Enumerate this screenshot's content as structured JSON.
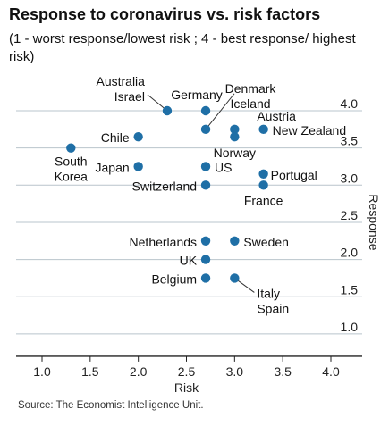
{
  "header": {
    "title": "Response to coronavirus vs. risk factors",
    "subtitle": "(1 - worst response/lowest risk ; 4 - best response/ highest risk)"
  },
  "footer": {
    "source": "Source: The Economist Intelligence Unit."
  },
  "chart_data": {
    "type": "scatter",
    "title": "Response to coronavirus vs. risk factors",
    "subtitle": "(1 - worst response/lowest risk ; 4 - best response/ highest risk)",
    "xlabel": "Risk",
    "ylabel": "Response",
    "xlim": [
      1.0,
      4.0
    ],
    "ylim": [
      0.8,
      4.1
    ],
    "xticks": [
      "1.0",
      "1.5",
      "2.0",
      "2.5",
      "3.0",
      "3.5",
      "4.0"
    ],
    "yticks": [
      "1.0",
      "1.5",
      "2.0",
      "2.5",
      "3.0",
      "3.5",
      "4.0"
    ],
    "grid": "horizontal",
    "point_color": "#1f6fa6",
    "points": [
      {
        "label": "South Korea",
        "x": 1.3,
        "y": 3.5
      },
      {
        "label": "Chile",
        "x": 2.0,
        "y": 3.65
      },
      {
        "label": "Japan",
        "x": 2.0,
        "y": 3.25
      },
      {
        "label": "Australia Israel",
        "x": 2.3,
        "y": 4.0
      },
      {
        "label": "Germany",
        "x": 2.7,
        "y": 4.0
      },
      {
        "label": "Denmark Iceland",
        "x": 2.7,
        "y": 3.75
      },
      {
        "label": "US",
        "x": 2.7,
        "y": 3.25
      },
      {
        "label": "Switzerland",
        "x": 2.7,
        "y": 3.0
      },
      {
        "label": "Netherlands",
        "x": 2.7,
        "y": 2.25
      },
      {
        "label": "UK",
        "x": 2.7,
        "y": 2.0
      },
      {
        "label": "Belgium",
        "x": 2.7,
        "y": 1.75
      },
      {
        "label": "Austria",
        "x": 3.0,
        "y": 3.75
      },
      {
        "label": "Norway",
        "x": 3.0,
        "y": 3.65
      },
      {
        "label": "Sweden",
        "x": 3.0,
        "y": 2.25
      },
      {
        "label": "Italy Spain",
        "x": 3.0,
        "y": 1.75
      },
      {
        "label": "New Zealand",
        "x": 3.3,
        "y": 3.75
      },
      {
        "label": "Portugal",
        "x": 3.3,
        "y": 3.15
      },
      {
        "label": "France",
        "x": 3.3,
        "y": 3.0
      }
    ]
  }
}
